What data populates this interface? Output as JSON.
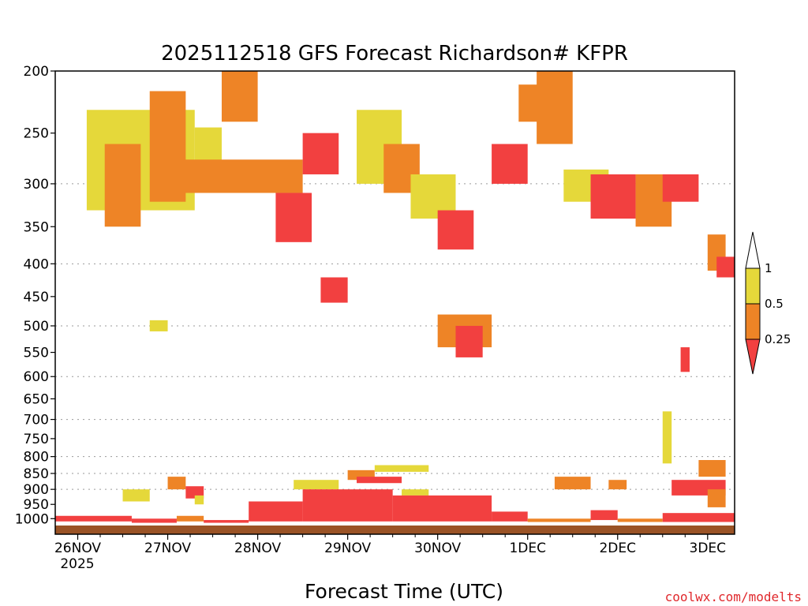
{
  "chart_data": {
    "type": "heatmap",
    "title": "2025112518 GFS Forecast Richardson# KFPR",
    "xlabel": "Forecast Time (UTC)",
    "ylabel": "",
    "credit": "coolwx.com/modelts",
    "y_scale": "log-pressure",
    "y_ticks": [
      200,
      250,
      300,
      350,
      400,
      450,
      500,
      550,
      600,
      650,
      700,
      750,
      800,
      850,
      900,
      950,
      1000
    ],
    "y_range": [
      200,
      1025
    ],
    "x_ticks": [
      "26NOV",
      "27NOV",
      "28NOV",
      "29NOV",
      "30NOV",
      "1DEC",
      "2DEC",
      "3DEC"
    ],
    "x_sublabel": "2025",
    "x_range_days": [
      25.75,
      33.3
    ],
    "grid_levels": [
      300,
      400,
      500,
      600,
      700,
      800,
      850,
      900
    ],
    "colorbar": {
      "labels": [
        "1",
        "0.5",
        "0.25"
      ],
      "bins": [
        {
          "range": "0.5-1",
          "color": "#e5d83a"
        },
        {
          "range": "0.25-0.5",
          "color": "#ee8426"
        },
        {
          "range": "<0.25",
          "color": "#f24040"
        }
      ],
      "over_color": "#ffffff"
    },
    "colors": {
      "low": "#f24040",
      "mid": "#ee8426",
      "high": "#e5d83a",
      "ground": "#9a5326"
    },
    "cells": [
      [
        26.1,
        27.3,
        230,
        330,
        "high"
      ],
      [
        26.3,
        26.7,
        260,
        350,
        "mid"
      ],
      [
        26.8,
        27.2,
        215,
        320,
        "mid"
      ],
      [
        27.3,
        27.6,
        245,
        300,
        "high"
      ],
      [
        27.6,
        28.0,
        200,
        240,
        "mid"
      ],
      [
        27.0,
        28.5,
        275,
        310,
        "mid"
      ],
      [
        28.2,
        28.6,
        310,
        370,
        "low"
      ],
      [
        28.5,
        28.9,
        250,
        290,
        "low"
      ],
      [
        29.1,
        29.6,
        230,
        300,
        "high"
      ],
      [
        29.4,
        29.8,
        260,
        310,
        "mid"
      ],
      [
        29.7,
        30.2,
        290,
        340,
        "high"
      ],
      [
        30.0,
        30.4,
        330,
        380,
        "low"
      ],
      [
        30.6,
        31.0,
        260,
        300,
        "low"
      ],
      [
        30.9,
        31.3,
        210,
        240,
        "mid"
      ],
      [
        31.1,
        31.5,
        200,
        260,
        "mid"
      ],
      [
        31.4,
        31.9,
        285,
        320,
        "high"
      ],
      [
        31.7,
        32.2,
        290,
        340,
        "low"
      ],
      [
        32.2,
        32.6,
        290,
        350,
        "mid"
      ],
      [
        33.0,
        33.2,
        360,
        410,
        "mid"
      ],
      [
        33.1,
        33.3,
        390,
        420,
        "low"
      ],
      [
        32.5,
        32.9,
        290,
        320,
        "low"
      ],
      [
        30.0,
        30.6,
        480,
        540,
        "mid"
      ],
      [
        30.2,
        30.5,
        500,
        560,
        "low"
      ],
      [
        28.7,
        29.0,
        420,
        460,
        "low"
      ],
      [
        26.8,
        27.0,
        490,
        510,
        "high"
      ],
      [
        32.7,
        32.8,
        540,
        590,
        "low"
      ],
      [
        32.5,
        32.6,
        680,
        820,
        "high"
      ],
      [
        32.9,
        33.2,
        810,
        860,
        "mid"
      ],
      [
        32.6,
        33.2,
        870,
        920,
        "low"
      ],
      [
        33.0,
        33.2,
        900,
        960,
        "mid"
      ],
      [
        26.5,
        26.8,
        900,
        940,
        "high"
      ],
      [
        27.0,
        27.2,
        860,
        900,
        "mid"
      ],
      [
        27.2,
        27.4,
        890,
        930,
        "low"
      ],
      [
        27.3,
        27.4,
        920,
        950,
        "high"
      ],
      [
        28.4,
        28.9,
        870,
        900,
        "high"
      ],
      [
        29.0,
        29.3,
        840,
        870,
        "mid"
      ],
      [
        29.3,
        29.9,
        825,
        845,
        "high"
      ],
      [
        29.1,
        29.6,
        860,
        880,
        "low"
      ],
      [
        29.6,
        29.9,
        900,
        920,
        "high"
      ],
      [
        31.3,
        31.7,
        860,
        900,
        "mid"
      ],
      [
        31.9,
        32.1,
        870,
        900,
        "mid"
      ]
    ],
    "surface_band": [
      [
        25.75,
        26.6,
        990,
        1010,
        "low"
      ],
      [
        26.6,
        27.1,
        1000,
        1015,
        "low"
      ],
      [
        27.1,
        27.4,
        990,
        1010,
        "mid"
      ],
      [
        27.4,
        27.9,
        1005,
        1015,
        "low"
      ],
      [
        27.9,
        28.5,
        940,
        1010,
        "low"
      ],
      [
        28.5,
        29.5,
        900,
        1010,
        "low"
      ],
      [
        29.5,
        30.6,
        920,
        1010,
        "low"
      ],
      [
        30.6,
        31.0,
        975,
        1010,
        "low"
      ],
      [
        31.0,
        31.7,
        1000,
        1012,
        "mid"
      ],
      [
        31.7,
        32.0,
        970,
        1005,
        "low"
      ],
      [
        32.0,
        32.5,
        1000,
        1012,
        "mid"
      ],
      [
        32.5,
        33.3,
        980,
        1012,
        "low"
      ]
    ]
  }
}
